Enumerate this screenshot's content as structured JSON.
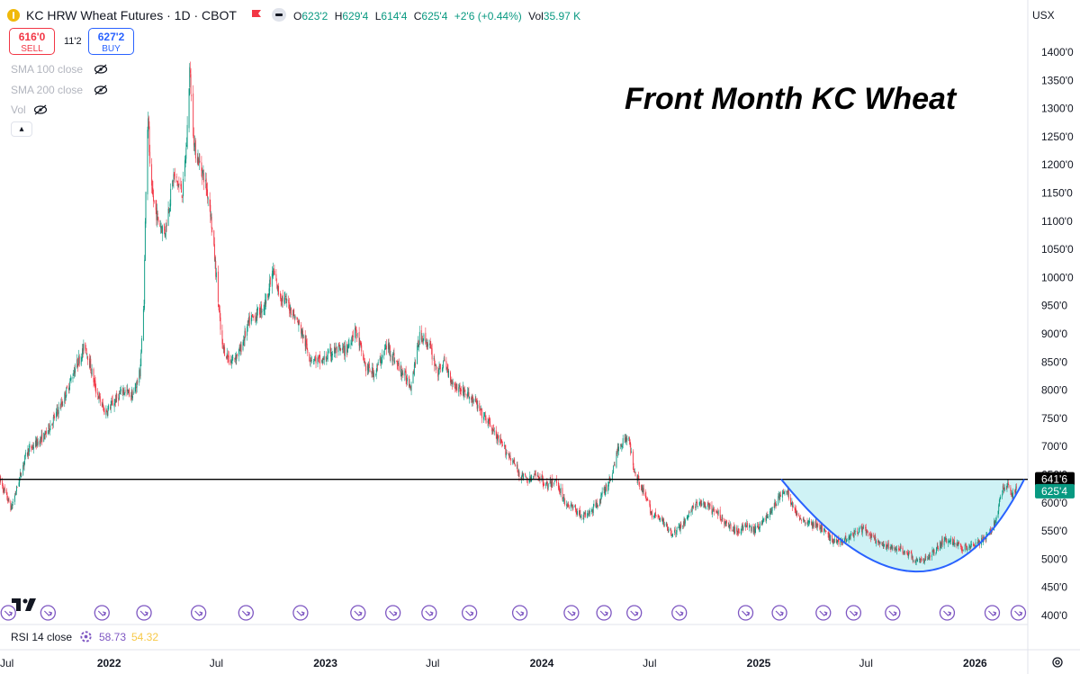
{
  "header": {
    "symbol_title": "KC HRW Wheat Futures · 1D · CBOT",
    "open_label": "O",
    "open_value": "623'2",
    "high_label": "H",
    "high_value": "629'4",
    "low_label": "L",
    "low_value": "614'4",
    "close_label": "C",
    "close_value": "625'4",
    "change": "+2'6 (+0.44%)",
    "vol_label": "Vol",
    "vol_value": "35.97 K",
    "currency": "USX"
  },
  "trade": {
    "sell_price": "616'0",
    "sell_label": "SELL",
    "spread": "11'2",
    "buy_price": "627'2",
    "buy_label": "BUY"
  },
  "indicators": [
    "SMA 100 close",
    "SMA 200 close",
    "Vol"
  ],
  "rsi": {
    "label": "RSI 14 close",
    "value1": "58.73",
    "value2": "54.32"
  },
  "colors": {
    "up": "#089981",
    "down": "#f23645",
    "arc": "#2962ff",
    "fill": "#bfeef2",
    "resistance": "#000000",
    "event": "#7e57c2"
  },
  "icons": [
    "flag-icon",
    "eye-off-icon",
    "chevron-up-icon",
    "event-arrow-icon",
    "settings-icon",
    "gear-icon"
  ],
  "chart_data": {
    "type": "candlestick",
    "title": "Front Month KC Wheat",
    "ylim": [
      390,
      1420
    ],
    "y_ticks": [
      400,
      450,
      500,
      550,
      600,
      650,
      700,
      750,
      800,
      850,
      900,
      950,
      1000,
      1050,
      1100,
      1150,
      1200,
      1250,
      1300,
      1350,
      1400
    ],
    "y_tick_labels": [
      "400'0",
      "450'0",
      "500'0",
      "550'0",
      "600'0",
      "650'0",
      "700'0",
      "750'0",
      "800'0",
      "850'0",
      "900'0",
      "950'0",
      "1000'0",
      "1050'0",
      "1100'0",
      "1150'0",
      "1200'0",
      "1250'0",
      "1300'0",
      "1350'0",
      "1400'0"
    ],
    "x_range": [
      "2021-07-01",
      "2026-03-31"
    ],
    "x_ticks": [
      {
        "date": "2021-07-01",
        "label": "Jul"
      },
      {
        "date": "2022-01-01",
        "label": "2022"
      },
      {
        "date": "2022-07-01",
        "label": "Jul"
      },
      {
        "date": "2023-01-01",
        "label": "2023"
      },
      {
        "date": "2023-07-01",
        "label": "Jul"
      },
      {
        "date": "2024-01-01",
        "label": "2024"
      },
      {
        "date": "2024-07-01",
        "label": "Jul"
      },
      {
        "date": "2025-01-01",
        "label": "2025"
      },
      {
        "date": "2025-07-01",
        "label": "Jul"
      },
      {
        "date": "2026-01-01",
        "label": "2026"
      }
    ],
    "price_path": [
      [
        "2021-07-01",
        640
      ],
      [
        "2021-07-20",
        590
      ],
      [
        "2021-08-15",
        690
      ],
      [
        "2021-09-15",
        720
      ],
      [
        "2021-10-15",
        780
      ],
      [
        "2021-11-05",
        840
      ],
      [
        "2021-11-22",
        880
      ],
      [
        "2021-12-10",
        800
      ],
      [
        "2021-12-25",
        760
      ],
      [
        "2022-01-10",
        780
      ],
      [
        "2022-01-25",
        800
      ],
      [
        "2022-02-10",
        790
      ],
      [
        "2022-02-22",
        830
      ],
      [
        "2022-03-01",
        960
      ],
      [
        "2022-03-05",
        1230
      ],
      [
        "2022-03-08",
        1290
      ],
      [
        "2022-03-12",
        1160
      ],
      [
        "2022-03-25",
        1100
      ],
      [
        "2022-04-05",
        1080
      ],
      [
        "2022-04-20",
        1180
      ],
      [
        "2022-05-05",
        1150
      ],
      [
        "2022-05-12",
        1240
      ],
      [
        "2022-05-17",
        1370
      ],
      [
        "2022-05-25",
        1230
      ],
      [
        "2022-06-10",
        1180
      ],
      [
        "2022-06-20",
        1130
      ],
      [
        "2022-07-01",
        1000
      ],
      [
        "2022-07-10",
        880
      ],
      [
        "2022-07-25",
        850
      ],
      [
        "2022-08-10",
        870
      ],
      [
        "2022-08-25",
        920
      ],
      [
        "2022-09-20",
        950
      ],
      [
        "2022-10-05",
        1010
      ],
      [
        "2022-10-15",
        970
      ],
      [
        "2022-11-01",
        950
      ],
      [
        "2022-11-20",
        910
      ],
      [
        "2022-12-05",
        860
      ],
      [
        "2022-12-25",
        850
      ],
      [
        "2023-01-15",
        870
      ],
      [
        "2023-02-05",
        870
      ],
      [
        "2023-02-20",
        910
      ],
      [
        "2023-03-10",
        840
      ],
      [
        "2023-03-25",
        830
      ],
      [
        "2023-04-15",
        880
      ],
      [
        "2023-05-05",
        840
      ],
      [
        "2023-05-25",
        810
      ],
      [
        "2023-06-10",
        900
      ],
      [
        "2023-06-25",
        880
      ],
      [
        "2023-07-10",
        830
      ],
      [
        "2023-07-20",
        850
      ],
      [
        "2023-08-05",
        810
      ],
      [
        "2023-08-20",
        800
      ],
      [
        "2023-09-10",
        780
      ],
      [
        "2023-09-20",
        760
      ],
      [
        "2023-10-05",
        740
      ],
      [
        "2023-10-20",
        710
      ],
      [
        "2023-11-10",
        680
      ],
      [
        "2023-11-25",
        650
      ],
      [
        "2023-12-10",
        640
      ],
      [
        "2023-12-25",
        650
      ],
      [
        "2024-01-10",
        630
      ],
      [
        "2024-01-25",
        640
      ],
      [
        "2024-02-10",
        600
      ],
      [
        "2024-02-25",
        590
      ],
      [
        "2024-03-10",
        575
      ],
      [
        "2024-03-25",
        585
      ],
      [
        "2024-04-10",
        610
      ],
      [
        "2024-04-25",
        640
      ],
      [
        "2024-05-10",
        700
      ],
      [
        "2024-05-25",
        720
      ],
      [
        "2024-06-05",
        660
      ],
      [
        "2024-06-20",
        620
      ],
      [
        "2024-07-05",
        580
      ],
      [
        "2024-07-20",
        570
      ],
      [
        "2024-08-10",
        545
      ],
      [
        "2024-08-25",
        560
      ],
      [
        "2024-09-10",
        590
      ],
      [
        "2024-09-25",
        600
      ],
      [
        "2024-10-10",
        590
      ],
      [
        "2024-10-25",
        580
      ],
      [
        "2024-11-10",
        560
      ],
      [
        "2024-11-25",
        550
      ],
      [
        "2024-12-10",
        560
      ],
      [
        "2024-12-25",
        550
      ],
      [
        "2025-01-10",
        570
      ],
      [
        "2025-01-25",
        590
      ],
      [
        "2025-02-10",
        620
      ],
      [
        "2025-02-20",
        615
      ],
      [
        "2025-03-05",
        580
      ],
      [
        "2025-03-25",
        565
      ],
      [
        "2025-04-10",
        560
      ],
      [
        "2025-04-25",
        545
      ],
      [
        "2025-05-10",
        530
      ],
      [
        "2025-05-25",
        535
      ],
      [
        "2025-06-10",
        545
      ],
      [
        "2025-06-25",
        555
      ],
      [
        "2025-07-10",
        540
      ],
      [
        "2025-07-25",
        525
      ],
      [
        "2025-08-10",
        520
      ],
      [
        "2025-08-25",
        520
      ],
      [
        "2025-09-10",
        510
      ],
      [
        "2025-09-25",
        495
      ],
      [
        "2025-10-10",
        500
      ],
      [
        "2025-10-25",
        515
      ],
      [
        "2025-11-10",
        535
      ],
      [
        "2025-11-25",
        530
      ],
      [
        "2025-12-10",
        520
      ],
      [
        "2025-12-25",
        525
      ],
      [
        "2026-01-10",
        530
      ],
      [
        "2026-01-25",
        545
      ],
      [
        "2026-02-05",
        570
      ],
      [
        "2026-02-15",
        620
      ],
      [
        "2026-02-25",
        635
      ],
      [
        "2026-03-05",
        610
      ],
      [
        "2026-03-12",
        625
      ]
    ],
    "resistance_level": 641.75,
    "resistance_label": "641'6",
    "last_price": 625.5,
    "last_price_label": "625'4",
    "rounded_bottom": {
      "start": [
        "2025-02-08",
        641.75
      ],
      "low": [
        "2025-09-25",
        478
      ],
      "end": [
        "2026-03-25",
        641.75
      ]
    },
    "event_dates": [
      "2021-07-15",
      "2021-09-20",
      "2021-12-20",
      "2022-03-01",
      "2022-06-01",
      "2022-08-20",
      "2022-11-20",
      "2023-02-25",
      "2023-04-25",
      "2023-06-25",
      "2023-09-01",
      "2023-11-25",
      "2024-02-20",
      "2024-04-15",
      "2024-06-05",
      "2024-08-20",
      "2024-12-10",
      "2025-02-05",
      "2025-04-20",
      "2025-06-10",
      "2025-08-15",
      "2025-11-15",
      "2026-01-30",
      "2026-03-15"
    ]
  }
}
